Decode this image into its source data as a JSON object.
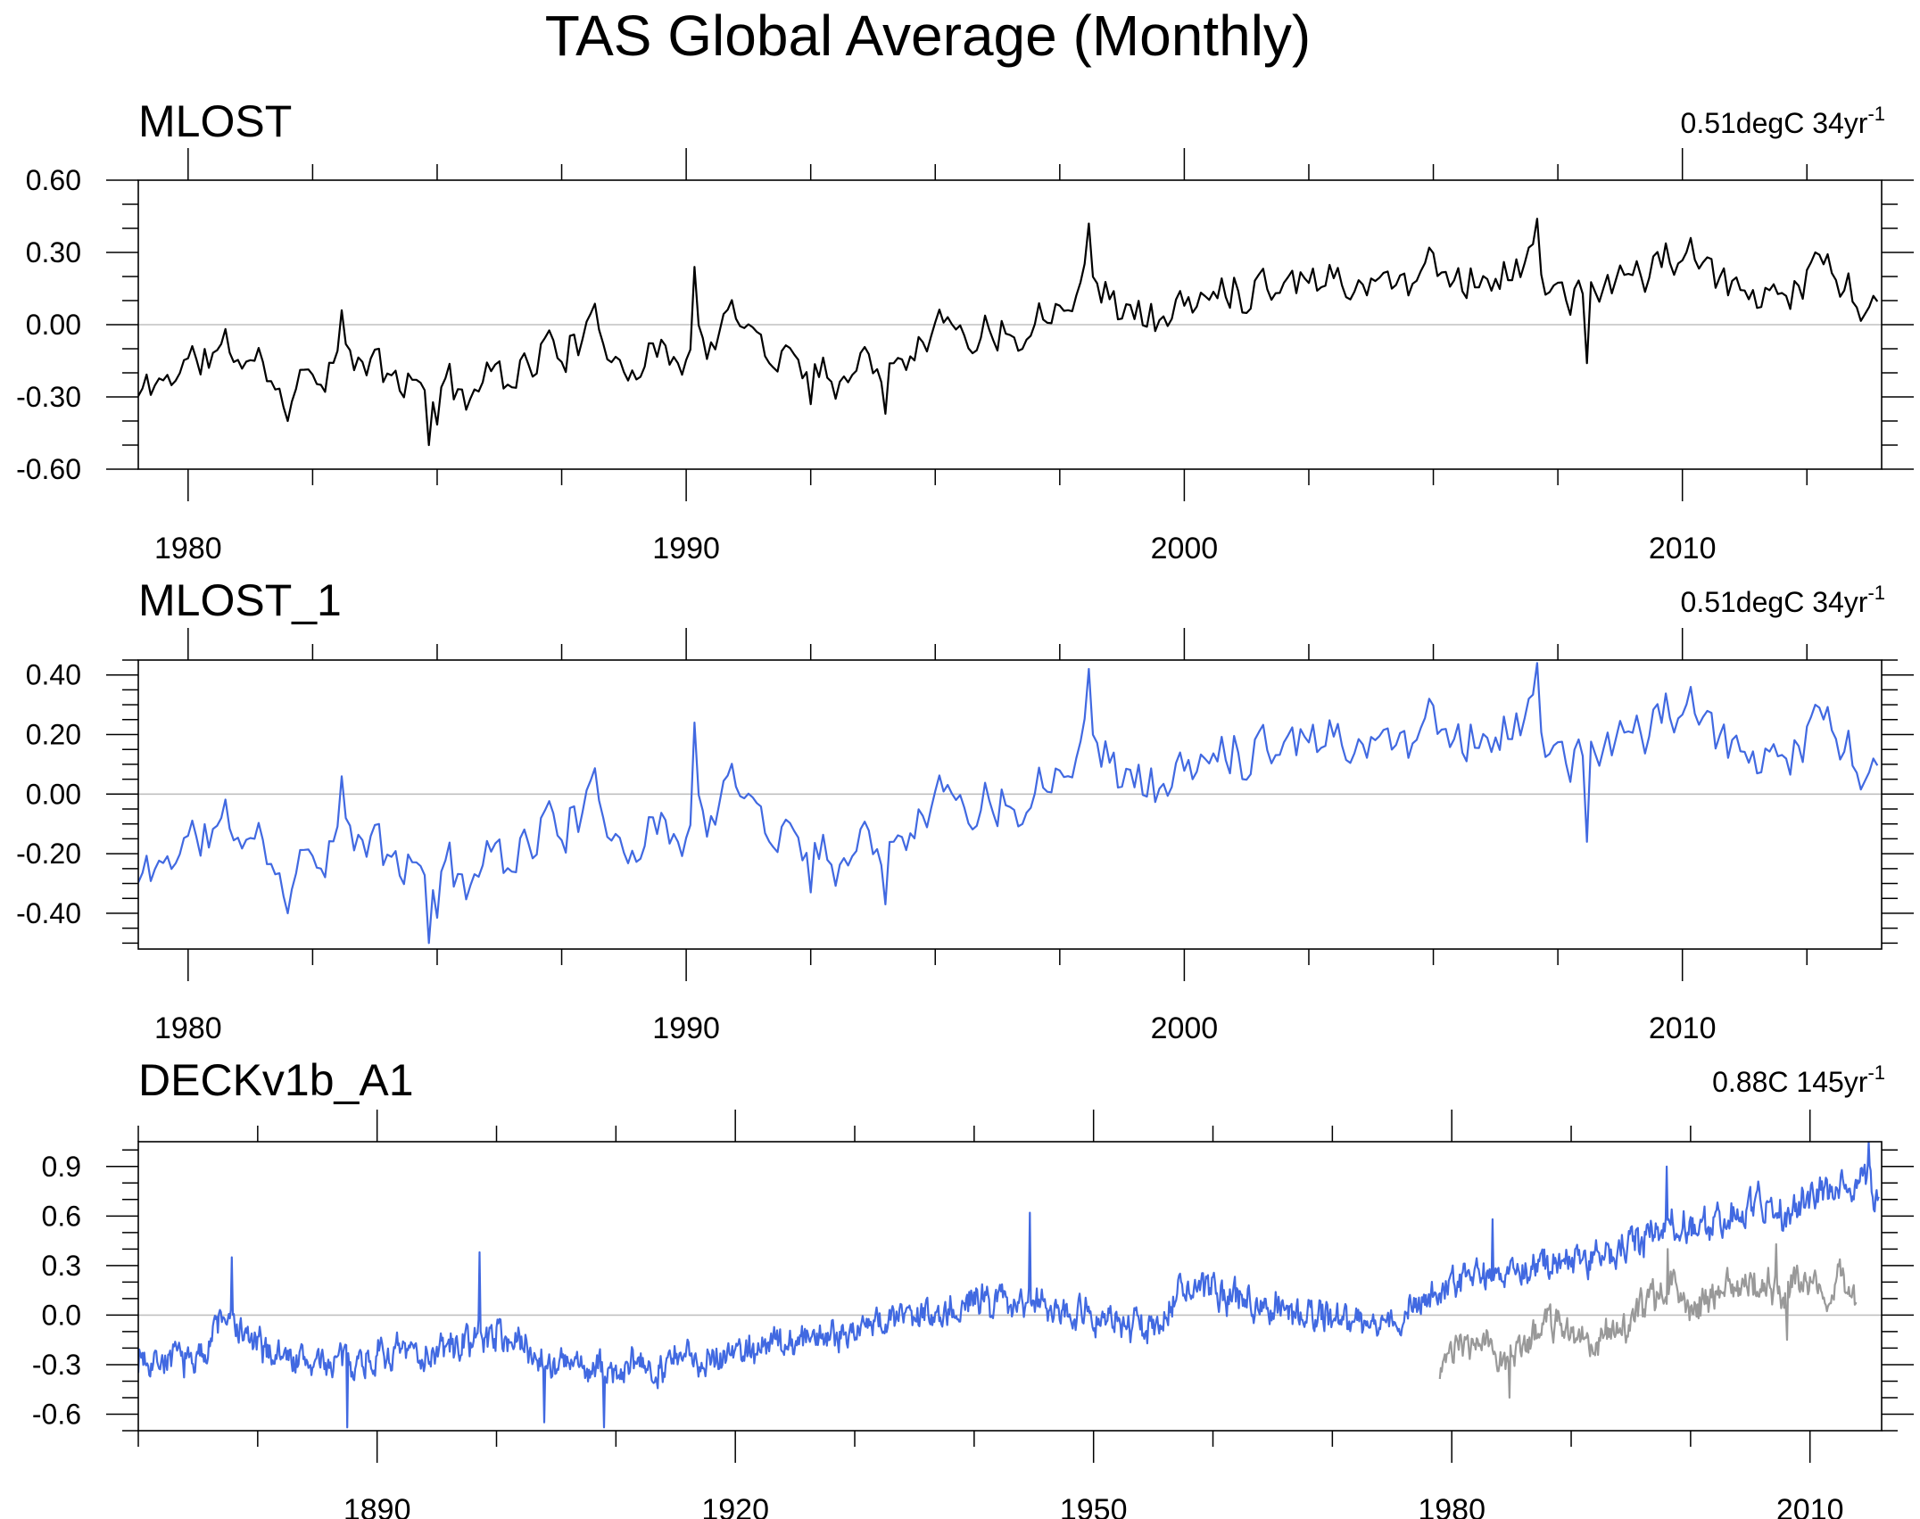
{
  "figure": {
    "title": "TAS Global Average (Monthly)"
  },
  "colors": {
    "black": "#000000",
    "blue": "#4169e1",
    "gray": "#999999",
    "zero_line": "#c0c0c0"
  },
  "chart_data": [
    {
      "type": "line",
      "title": "MLOST",
      "trend_value": "0.51degC 34yr",
      "trend_exponent": "-1",
      "xlim": [
        1979.0,
        2014.0
      ],
      "ylim": [
        -0.6,
        0.6
      ],
      "x_ticks": [
        "1980",
        "1990",
        "2000",
        "2010"
      ],
      "y_ticks": [
        "0.60",
        "0.30",
        "0.00",
        "-0.30",
        "-0.60"
      ],
      "series": [
        {
          "color": "#000000",
          "start": 1979.0,
          "step": 0.0833333,
          "seed": 11,
          "knots": [
            [
              1979.0,
              -0.3
            ],
            [
              1980.0,
              -0.15
            ],
            [
              1981.0,
              -0.12
            ],
            [
              1982.0,
              -0.25
            ],
            [
              1983.0,
              -0.12
            ],
            [
              1984.0,
              -0.22
            ],
            [
              1985.0,
              -0.3
            ],
            [
              1986.0,
              -0.22
            ],
            [
              1987.0,
              -0.12
            ],
            [
              1988.0,
              -0.05
            ],
            [
              1989.0,
              -0.13
            ],
            [
              1990.0,
              -0.1
            ],
            [
              1991.0,
              0.0
            ],
            [
              1992.0,
              -0.12
            ],
            [
              1993.0,
              -0.2
            ],
            [
              1994.0,
              -0.12
            ],
            [
              1995.0,
              0.0
            ],
            [
              1996.0,
              -0.02
            ],
            [
              1997.0,
              0.02
            ],
            [
              1998.0,
              0.25
            ],
            [
              1999.0,
              0.03
            ],
            [
              2000.0,
              0.06
            ],
            [
              2001.0,
              0.17
            ],
            [
              2002.0,
              0.21
            ],
            [
              2003.0,
              0.21
            ],
            [
              2004.0,
              0.17
            ],
            [
              2005.0,
              0.25
            ],
            [
              2006.0,
              0.2
            ],
            [
              2007.0,
              0.24
            ],
            [
              2008.0,
              0.08
            ],
            [
              2009.0,
              0.22
            ],
            [
              2010.0,
              0.28
            ],
            [
              2011.0,
              0.12
            ],
            [
              2012.0,
              0.17
            ],
            [
              2013.0,
              0.24
            ],
            [
              2013.95,
              0.03
            ]
          ],
          "events": [
            [
              1984.8,
              -0.5
            ],
            [
              1998.05,
              0.42
            ],
            [
              2007.1,
              0.44
            ],
            [
              2008.05,
              -0.16
            ],
            [
              1990.2,
              0.24
            ],
            [
              1994.0,
              -0.37
            ],
            [
              1982.0,
              -0.4
            ],
            [
              1983.05,
              0.06
            ],
            [
              1992.5,
              -0.33
            ]
          ]
        }
      ]
    },
    {
      "type": "line",
      "title": "MLOST_1",
      "trend_value": "0.51degC 34yr",
      "trend_exponent": "-1",
      "xlim": [
        1979.0,
        2014.0
      ],
      "ylim": [
        -0.52,
        0.45
      ],
      "x_ticks": [
        "1980",
        "1990",
        "2000",
        "2010"
      ],
      "y_ticks": [
        "0.40",
        "0.20",
        "0.00",
        "-0.20",
        "-0.40"
      ],
      "series": [
        {
          "color": "#4169e1",
          "start": 1979.0,
          "step": 0.0833333,
          "seed": 11,
          "knots": [
            [
              1979.0,
              -0.3
            ],
            [
              1980.0,
              -0.15
            ],
            [
              1981.0,
              -0.12
            ],
            [
              1982.0,
              -0.25
            ],
            [
              1983.0,
              -0.12
            ],
            [
              1984.0,
              -0.22
            ],
            [
              1985.0,
              -0.3
            ],
            [
              1986.0,
              -0.22
            ],
            [
              1987.0,
              -0.12
            ],
            [
              1988.0,
              -0.05
            ],
            [
              1989.0,
              -0.13
            ],
            [
              1990.0,
              -0.1
            ],
            [
              1991.0,
              0.0
            ],
            [
              1992.0,
              -0.12
            ],
            [
              1993.0,
              -0.2
            ],
            [
              1994.0,
              -0.12
            ],
            [
              1995.0,
              0.0
            ],
            [
              1996.0,
              -0.02
            ],
            [
              1997.0,
              0.02
            ],
            [
              1998.0,
              0.25
            ],
            [
              1999.0,
              0.03
            ],
            [
              2000.0,
              0.06
            ],
            [
              2001.0,
              0.17
            ],
            [
              2002.0,
              0.21
            ],
            [
              2003.0,
              0.21
            ],
            [
              2004.0,
              0.17
            ],
            [
              2005.0,
              0.25
            ],
            [
              2006.0,
              0.2
            ],
            [
              2007.0,
              0.24
            ],
            [
              2008.0,
              0.08
            ],
            [
              2009.0,
              0.22
            ],
            [
              2010.0,
              0.28
            ],
            [
              2011.0,
              0.12
            ],
            [
              2012.0,
              0.17
            ],
            [
              2013.0,
              0.24
            ],
            [
              2013.95,
              0.03
            ]
          ],
          "events": [
            [
              1984.8,
              -0.5
            ],
            [
              1998.05,
              0.42
            ],
            [
              2007.1,
              0.44
            ],
            [
              2008.05,
              -0.16
            ],
            [
              1990.2,
              0.24
            ],
            [
              1994.0,
              -0.37
            ],
            [
              1982.0,
              -0.4
            ],
            [
              1983.05,
              0.06
            ],
            [
              1992.5,
              -0.33
            ]
          ]
        }
      ]
    },
    {
      "type": "line",
      "title": "DECKv1b_A1",
      "trend_value": "0.88C 145yr",
      "trend_exponent": "-1",
      "xlim": [
        1870.0,
        2016.0
      ],
      "ylim": [
        -0.7,
        1.05
      ],
      "x_ticks": [
        "1890",
        "1920",
        "1950",
        "1980",
        "2010"
      ],
      "y_ticks": [
        "0.9",
        "0.6",
        "0.3",
        "0.0",
        "-0.3",
        "-0.6"
      ],
      "series": [
        {
          "color": "#4169e1",
          "start": 1870.0,
          "step": 0.0833333,
          "seed": 7,
          "knots": [
            [
              1870,
              -0.25
            ],
            [
              1875,
              -0.28
            ],
            [
              1877,
              0.0
            ],
            [
              1880,
              -0.2
            ],
            [
              1885,
              -0.3
            ],
            [
              1890,
              -0.25
            ],
            [
              1895,
              -0.22
            ],
            [
              1900,
              -0.1
            ],
            [
              1905,
              -0.3
            ],
            [
              1910,
              -0.35
            ],
            [
              1915,
              -0.28
            ],
            [
              1920,
              -0.22
            ],
            [
              1925,
              -0.15
            ],
            [
              1930,
              -0.08
            ],
            [
              1935,
              0.0
            ],
            [
              1940,
              0.08
            ],
            [
              1945,
              0.1
            ],
            [
              1950,
              0.0
            ],
            [
              1955,
              -0.1
            ],
            [
              1957,
              0.15
            ],
            [
              1960,
              0.15
            ],
            [
              1965,
              0.05
            ],
            [
              1970,
              0.0
            ],
            [
              1975,
              -0.05
            ],
            [
              1978,
              0.1
            ],
            [
              1980,
              0.2
            ],
            [
              1985,
              0.25
            ],
            [
              1990,
              0.35
            ],
            [
              1995,
              0.4
            ],
            [
              1998,
              0.6
            ],
            [
              2000,
              0.5
            ],
            [
              2003,
              0.6
            ],
            [
              2006,
              0.7
            ],
            [
              2008,
              0.6
            ],
            [
              2010,
              0.7
            ],
            [
              2013,
              0.75
            ],
            [
              2015,
              0.85
            ],
            [
              2015.8,
              0.65
            ]
          ],
          "events": [
            [
              1944.7,
              0.62
            ],
            [
              2014.9,
              1.05
            ],
            [
              1898.6,
              0.38
            ],
            [
              1887.5,
              -0.68
            ],
            [
              1909.0,
              -0.68
            ],
            [
              1877.8,
              0.35
            ],
            [
              1998.0,
              0.9
            ],
            [
              1983.4,
              0.58
            ],
            [
              1904.0,
              -0.65
            ]
          ]
        },
        {
          "color": "#999999",
          "start": 1979.0,
          "step": 0.0833333,
          "seed": 23,
          "knots": [
            [
              1979,
              -0.3
            ],
            [
              1982,
              -0.15
            ],
            [
              1985,
              -0.25
            ],
            [
              1988,
              -0.05
            ],
            [
              1990,
              -0.08
            ],
            [
              1992,
              -0.15
            ],
            [
              1995,
              -0.05
            ],
            [
              1998,
              0.18
            ],
            [
              2000,
              0.05
            ],
            [
              2003,
              0.18
            ],
            [
              2006,
              0.2
            ],
            [
              2008,
              0.1
            ],
            [
              2010,
              0.25
            ],
            [
              2011.5,
              0.1
            ],
            [
              2013,
              0.2
            ],
            [
              2013.95,
              0.0
            ]
          ],
          "events": [
            [
              1984.8,
              -0.5
            ],
            [
              2007.2,
              0.43
            ],
            [
              1998.05,
              0.4
            ],
            [
              2008.05,
              -0.15
            ]
          ]
        }
      ]
    }
  ]
}
